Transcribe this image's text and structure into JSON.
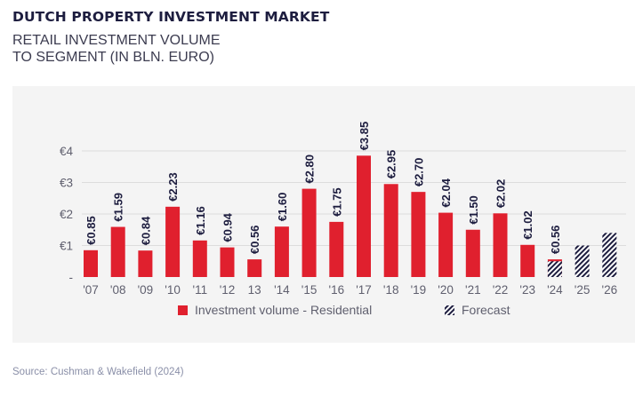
{
  "header": {
    "title": "DUTCH PROPERTY INVESTMENT MARKET",
    "subtitle_line1": "RETAIL INVESTMENT VOLUME",
    "subtitle_line2": "TO SEGMENT (IN BLN. EURO)"
  },
  "footer": {
    "source": "Source: Cushman & Wakefield (2024)"
  },
  "colors": {
    "bar": "#e0202e",
    "forecast": "#1d1d3f",
    "panel": "#f4f4f4",
    "text": "#5f5f6e",
    "label": "#1d1d3f"
  },
  "chart_data": {
    "type": "bar",
    "title": "",
    "xlabel": "",
    "ylabel": "",
    "categories": [
      "'07",
      "'08",
      "'09",
      "'10",
      "'11",
      "'12",
      "13",
      "'14",
      "'15",
      "'16",
      "'17",
      "'18",
      "'19",
      "'20",
      "'21",
      "'22",
      "'23",
      "'24",
      "'25",
      "'26"
    ],
    "series": [
      {
        "name": "Investment volume - Residential",
        "values": [
          0.85,
          1.59,
          0.84,
          2.23,
          1.16,
          0.94,
          0.56,
          1.6,
          2.8,
          1.75,
          3.85,
          2.95,
          2.7,
          2.04,
          1.5,
          2.02,
          1.02,
          0.56,
          null,
          null
        ],
        "labels": [
          "€0.85",
          "€1.59",
          "€0.84",
          "€2.23",
          "€1.16",
          "€0.94",
          "€0.56",
          "€1.60",
          "€2.80",
          "€1.75",
          "€3.85",
          "€2.95",
          "€2.70",
          "€2.04",
          "€1.50",
          "€2.02",
          "€1.02",
          "€0.56",
          "",
          ""
        ]
      },
      {
        "name": "Forecast",
        "values": [
          null,
          null,
          null,
          null,
          null,
          null,
          null,
          null,
          null,
          null,
          null,
          null,
          null,
          null,
          null,
          null,
          null,
          0.5,
          1.0,
          1.4
        ]
      }
    ],
    "yticks": [
      {
        "value": 0,
        "label": "-"
      },
      {
        "value": 1,
        "label": "€1"
      },
      {
        "value": 2,
        "label": "€2"
      },
      {
        "value": 3,
        "label": "€3"
      },
      {
        "value": 4,
        "label": "€4"
      }
    ],
    "ylim": [
      0,
      4.5
    ],
    "grid": true,
    "legend_position": "bottom-center"
  }
}
